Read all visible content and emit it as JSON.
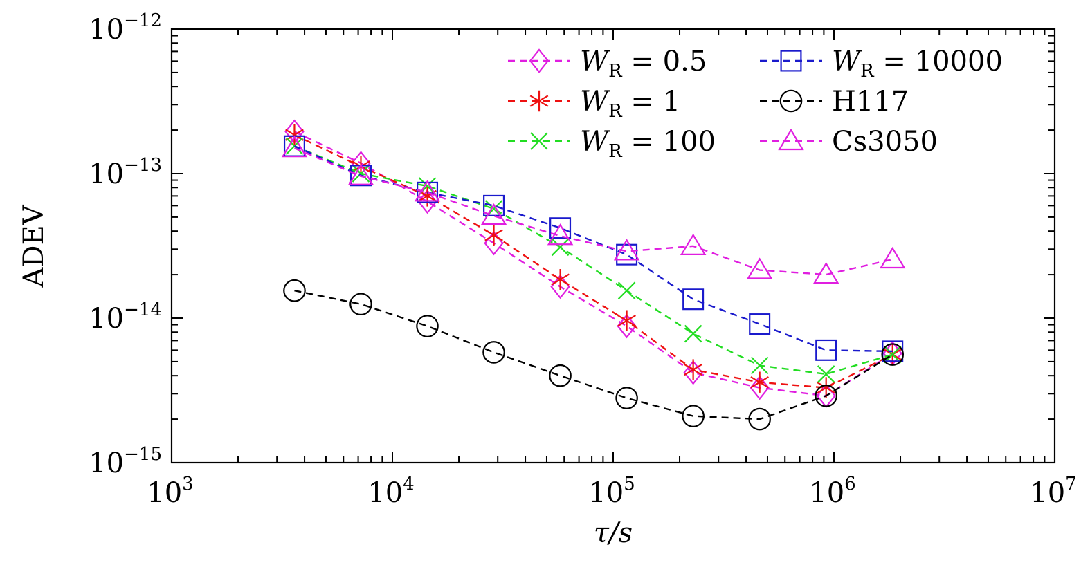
{
  "chart_data": {
    "type": "line",
    "scale": {
      "x": "log",
      "y": "log"
    },
    "xlabel": "τ/s",
    "ylabel": "ADEV",
    "xlim": [
      1000,
      10000000
    ],
    "ylim": [
      1e-15,
      1e-12
    ],
    "x_ticks": [
      {
        "base": "10",
        "exp": "3",
        "value": 1000
      },
      {
        "base": "10",
        "exp": "4",
        "value": 10000
      },
      {
        "base": "10",
        "exp": "5",
        "value": 100000
      },
      {
        "base": "10",
        "exp": "6",
        "value": 1000000
      },
      {
        "base": "10",
        "exp": "7",
        "value": 10000000
      }
    ],
    "y_ticks": [
      {
        "base": "10",
        "exp": "−12",
        "value": 1e-12
      },
      {
        "base": "10",
        "exp": "−13",
        "value": 1e-13
      },
      {
        "base": "10",
        "exp": "−14",
        "value": 1e-14
      },
      {
        "base": "10",
        "exp": "−15",
        "value": 1e-15
      }
    ],
    "x": [
      3600,
      7200,
      14400,
      28800,
      57600,
      115200,
      230400,
      460800,
      921600,
      1843200
    ],
    "series": [
      {
        "id": "wr05",
        "name": "W_R = 0.5",
        "label_var": "W",
        "label_sub": "R",
        "label_rest": " = 0.5",
        "color": "#e01ee0",
        "marker": "diamond",
        "values": [
          1.95e-13,
          1.18e-13,
          6.4e-14,
          3.3e-14,
          1.65e-14,
          8.8e-15,
          4.2e-15,
          3.3e-15,
          2.9e-15,
          5.7e-15
        ]
      },
      {
        "id": "wr1",
        "name": "W_R = 1",
        "label_var": "W",
        "label_sub": "R",
        "label_rest": " = 1",
        "color": "#ee1111",
        "marker": "star",
        "values": [
          1.85e-13,
          1.12e-13,
          7e-14,
          3.75e-14,
          1.85e-14,
          9.6e-15,
          4.4e-15,
          3.6e-15,
          3.3e-15,
          5.6e-15
        ]
      },
      {
        "id": "wr100",
        "name": "W_R = 100",
        "label_var": "W",
        "label_sub": "R",
        "label_rest": " = 100",
        "color": "#22dd22",
        "marker": "x",
        "values": [
          1.55e-13,
          1e-13,
          8.2e-14,
          5.7e-14,
          3.1e-14,
          1.55e-14,
          7.8e-15,
          4.7e-15,
          4.1e-15,
          5.6e-15
        ]
      },
      {
        "id": "wr10000",
        "name": "W_R = 10000",
        "label_var": "W",
        "label_sub": "R",
        "label_rest": " = 10000",
        "color": "#1a1acc",
        "marker": "square",
        "values": [
          1.55e-13,
          9.7e-14,
          7.4e-14,
          6e-14,
          4.2e-14,
          2.75e-14,
          1.35e-14,
          9.1e-15,
          6e-15,
          5.9e-15
        ]
      },
      {
        "id": "h117",
        "name": "H117",
        "label_var": "",
        "label_sub": "",
        "label_rest": "H117",
        "color": "#000000",
        "marker": "circle",
        "values": [
          1.55e-14,
          1.25e-14,
          8.8e-15,
          5.8e-15,
          4e-15,
          2.8e-15,
          2.1e-15,
          2e-15,
          2.9e-15,
          5.6e-15
        ]
      },
      {
        "id": "cs3050",
        "name": "Cs3050",
        "label_var": "",
        "label_sub": "",
        "label_rest": "Cs3050",
        "color": "#e01ee0",
        "marker": "triangle",
        "values": [
          1.5e-13,
          9.6e-14,
          7.4e-14,
          5.1e-14,
          3.7e-14,
          2.9e-14,
          3.15e-14,
          2.15e-14,
          2e-14,
          2.55e-14
        ]
      }
    ],
    "legend": {
      "position": "top-right",
      "columns": 2,
      "order": [
        [
          "wr05",
          "wr1",
          "wr100"
        ],
        [
          "wr10000",
          "h117",
          "cs3050"
        ]
      ]
    }
  }
}
